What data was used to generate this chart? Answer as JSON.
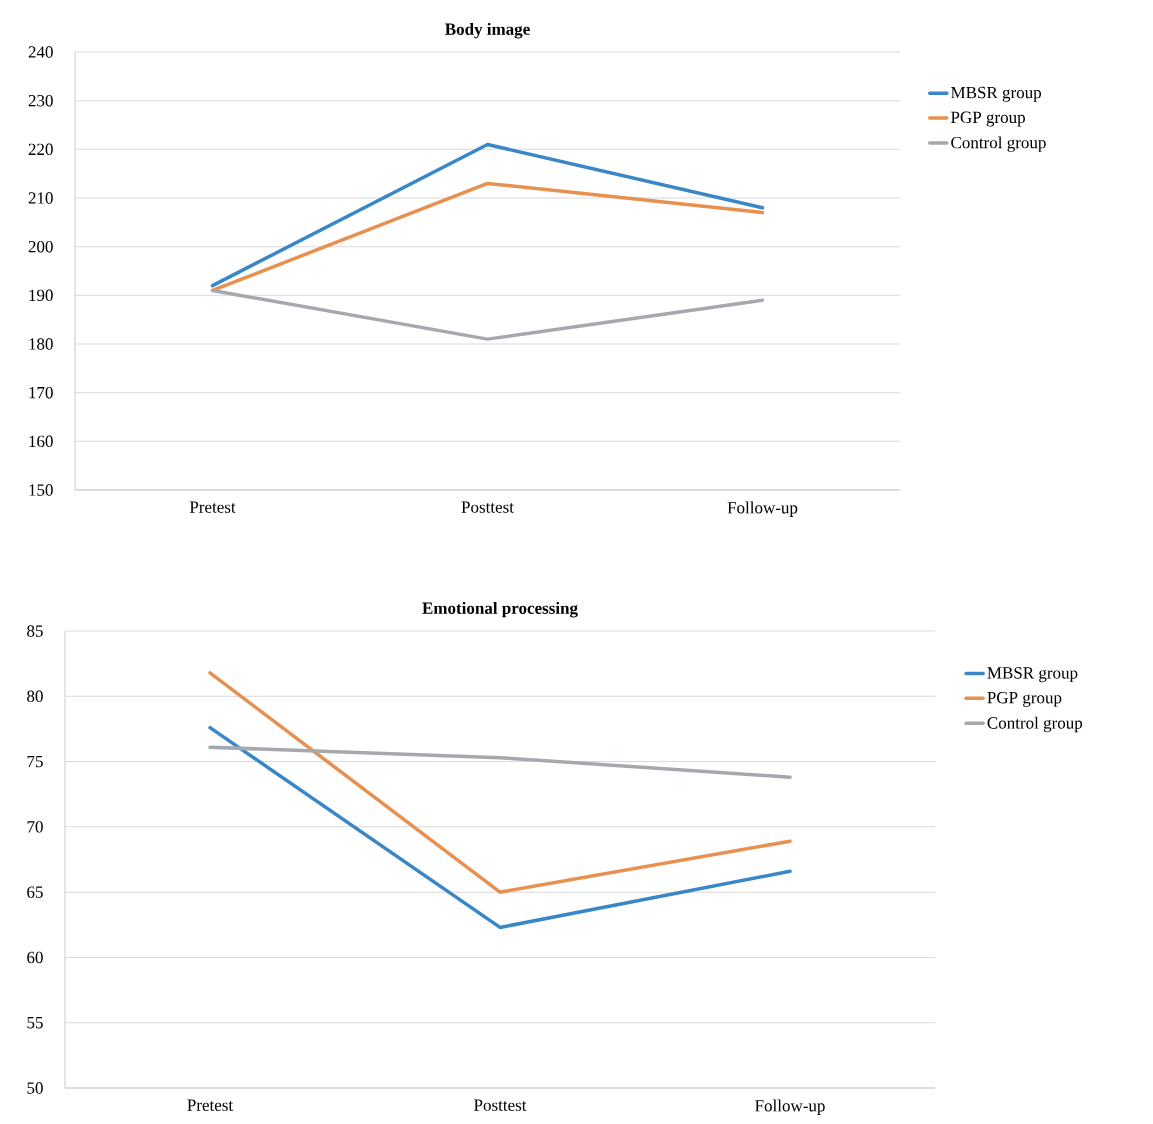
{
  "chart_data": [
    {
      "type": "line",
      "title": "Body image",
      "categories": [
        "Pretest",
        "Posttest",
        "Follow-up"
      ],
      "series": [
        {
          "name": "MBSR group",
          "color": "#3a87c8",
          "values": [
            192,
            221,
            208
          ]
        },
        {
          "name": "PGP group",
          "color": "#e8904f",
          "values": [
            191,
            213,
            207
          ]
        },
        {
          "name": "Control group",
          "color": "#a5a8ad",
          "values": [
            191,
            181,
            189
          ]
        }
      ],
      "ylim": [
        150,
        240
      ],
      "yticks": [
        150,
        160,
        170,
        180,
        190,
        200,
        210,
        220,
        230,
        240
      ],
      "grid": "y",
      "legend": "right",
      "marker": "none",
      "line_style": "solid"
    },
    {
      "type": "line",
      "title": "Emotional processing",
      "categories": [
        "Pretest",
        "Posttest",
        "Follow-up"
      ],
      "series": [
        {
          "name": "MBSR group",
          "color": "#3a87c8",
          "values": [
            77.6,
            62.3,
            66.6
          ]
        },
        {
          "name": "PGP group",
          "color": "#e8904f",
          "values": [
            81.8,
            65.0,
            68.9
          ]
        },
        {
          "name": "Control group",
          "color": "#a5a8ad",
          "values": [
            76.1,
            75.3,
            73.8
          ]
        }
      ],
      "ylim": [
        50,
        85
      ],
      "yticks": [
        50,
        55,
        60,
        65,
        70,
        75,
        80,
        85
      ],
      "grid": "y",
      "legend": "right",
      "marker": "none",
      "line_style": "solid"
    }
  ]
}
